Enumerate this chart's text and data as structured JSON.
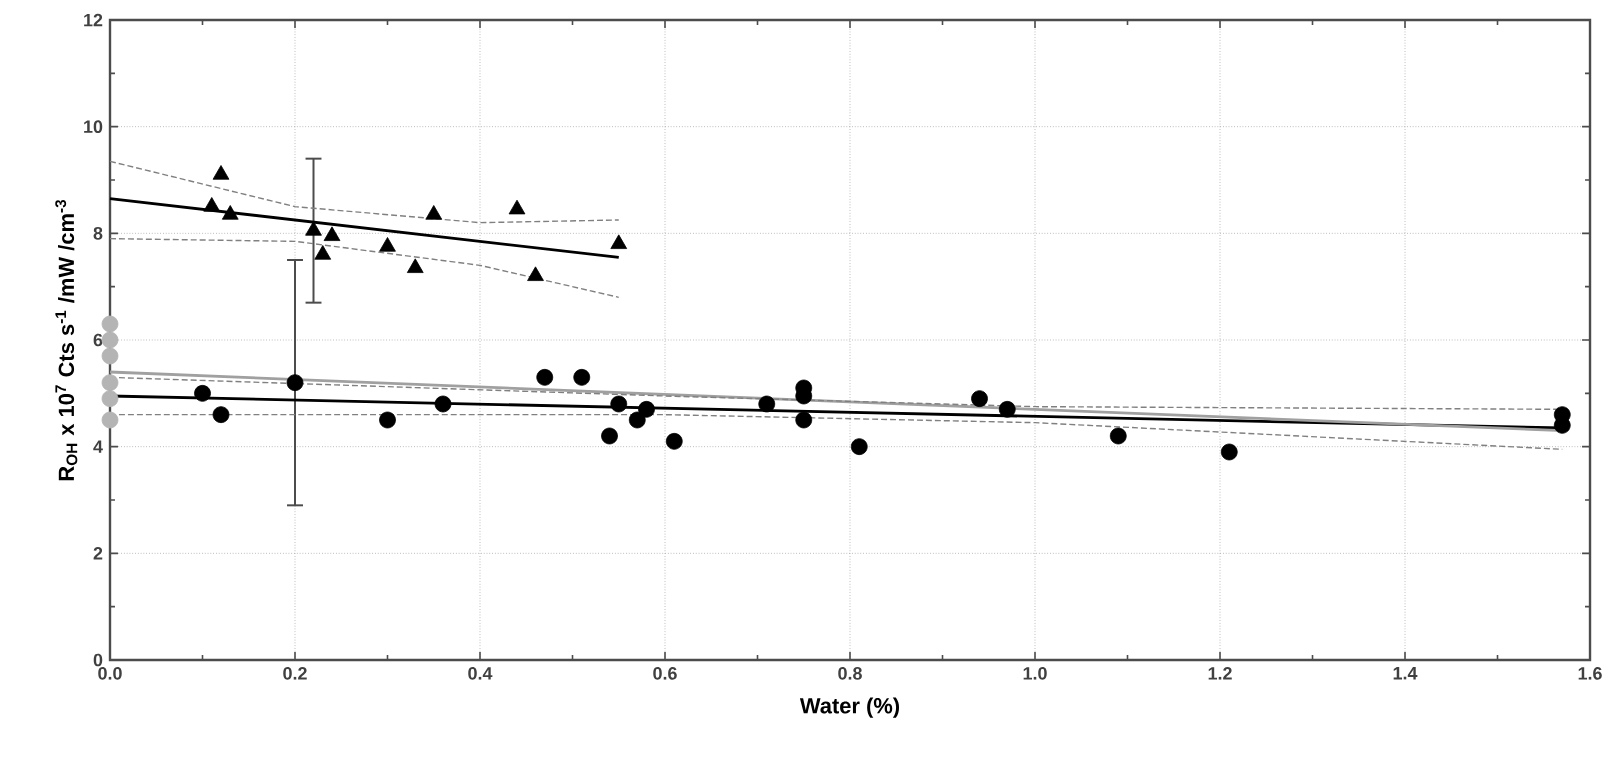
{
  "chart_data": {
    "type": "scatter",
    "xlabel": "Water (%)",
    "ylabel": "R$_{OH}$ x 10$^{7}$ Cts s$^{-1}$ /mW /cm$^{-3}$",
    "xlim": [
      0,
      1.6
    ],
    "ylim": [
      0,
      12
    ],
    "xticks": [
      {
        "value": 0,
        "label": "0.0"
      },
      {
        "value": 0.2,
        "label": "0.2"
      },
      {
        "value": 0.4,
        "label": "0.4"
      },
      {
        "value": 0.6,
        "label": "0.6"
      },
      {
        "value": 0.8,
        "label": "0.8"
      },
      {
        "value": 1.0,
        "label": "1.0"
      },
      {
        "value": 1.2,
        "label": "1.2"
      },
      {
        "value": 1.4,
        "label": "1.4"
      },
      {
        "value": 1.6,
        "label": "1.6"
      }
    ],
    "yticks": [
      0,
      2,
      4,
      6,
      8,
      10,
      12
    ],
    "grid": true,
    "series": [
      {
        "marker": "triangle",
        "color": "#000000",
        "x": [
          0.11,
          0.12,
          0.13,
          0.22,
          0.23,
          0.24,
          0.3,
          0.33,
          0.35,
          0.44,
          0.46,
          0.55
        ],
        "values": [
          8.5,
          9.1,
          8.35,
          8.05,
          7.6,
          7.95,
          7.75,
          7.35,
          8.35,
          8.45,
          7.2,
          7.8
        ],
        "errors": [
          null,
          null,
          null,
          [
            6.7,
            9.4
          ],
          null,
          null,
          null,
          null,
          null,
          null,
          null,
          null
        ]
      },
      {
        "marker": "circle",
        "color": "#000000",
        "x": [
          0.1,
          0.12,
          0.2,
          0.3,
          0.36,
          0.47,
          0.51,
          0.54,
          0.55,
          0.57,
          0.58,
          0.61,
          0.71,
          0.75,
          0.75,
          0.75,
          0.81,
          0.94,
          0.97,
          1.09,
          1.21,
          1.57,
          1.57
        ],
        "values": [
          5.0,
          4.6,
          5.2,
          4.5,
          4.8,
          5.3,
          5.3,
          4.2,
          4.8,
          4.5,
          4.7,
          4.1,
          4.8,
          5.1,
          4.95,
          4.5,
          4.0,
          4.9,
          4.7,
          4.2,
          3.9,
          4.6,
          4.4
        ],
        "errors": [
          null,
          null,
          [
            2.9,
            7.5
          ],
          null,
          null,
          null,
          null,
          null,
          null,
          null,
          null,
          null,
          null,
          null,
          null,
          null,
          null,
          null,
          null,
          null,
          null,
          null,
          null
        ]
      },
      {
        "marker": "circle",
        "color": "#b4b4b4",
        "x": [
          0,
          0,
          0,
          0,
          0,
          0
        ],
        "values": [
          6.3,
          6.0,
          5.7,
          5.2,
          4.9,
          4.5
        ]
      },
      {
        "type": "line",
        "line_style": "solid",
        "color": "#000000",
        "x": [
          0,
          0.55
        ],
        "values": [
          8.65,
          7.55
        ]
      },
      {
        "type": "line",
        "line_style": "dashed",
        "color": "#808080",
        "x": [
          0,
          0.2,
          0.4,
          0.55
        ],
        "values": [
          9.35,
          8.5,
          8.2,
          8.25
        ]
      },
      {
        "type": "line",
        "line_style": "dashed",
        "color": "#808080",
        "x": [
          0,
          0.2,
          0.4,
          0.55
        ],
        "values": [
          7.9,
          7.85,
          7.4,
          6.8
        ]
      },
      {
        "type": "line",
        "line_style": "solid",
        "color": "#000000",
        "x": [
          0,
          1.57
        ],
        "values": [
          4.95,
          4.35
        ]
      },
      {
        "type": "line",
        "line_style": "solid",
        "color": "#a0a0a0",
        "x": [
          0,
          1.57
        ],
        "values": [
          5.4,
          4.3
        ]
      },
      {
        "type": "line",
        "line_style": "dashed",
        "color": "#808080",
        "x": [
          0,
          0.6,
          1.0,
          1.57
        ],
        "values": [
          5.3,
          4.95,
          4.75,
          4.7
        ]
      },
      {
        "type": "line",
        "line_style": "dashed",
        "color": "#808080",
        "x": [
          0,
          0.6,
          1.0,
          1.57
        ],
        "values": [
          4.6,
          4.6,
          4.45,
          3.95
        ]
      }
    ]
  }
}
